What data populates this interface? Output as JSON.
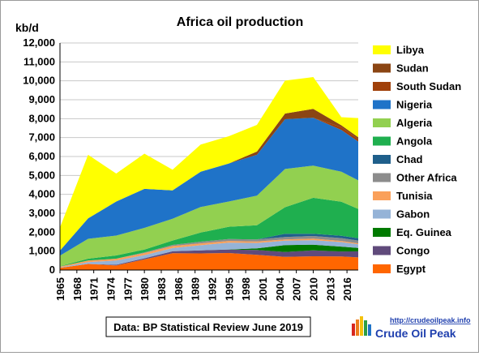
{
  "chart_data": {
    "type": "area",
    "stacked": true,
    "title": "Africa oil production",
    "ylabel": "kb/d",
    "xlabel": "",
    "xlim": [
      1965,
      2018
    ],
    "ylim": [
      0,
      12000
    ],
    "yticks": [
      0,
      1000,
      2000,
      3000,
      4000,
      5000,
      6000,
      7000,
      8000,
      9000,
      10000,
      11000,
      12000
    ],
    "ytick_labels": [
      "0",
      "1,000",
      "2,000",
      "3,000",
      "4,000",
      "5,000",
      "6,000",
      "7,000",
      "8,000",
      "9,000",
      "10,000",
      "11,000",
      "12,000"
    ],
    "xticks": [
      1965,
      1968,
      1971,
      1974,
      1977,
      1980,
      1983,
      1986,
      1989,
      1992,
      1995,
      1998,
      2001,
      2004,
      2007,
      2010,
      2013,
      2016
    ],
    "grid": true,
    "legend_position": "right",
    "source_note": "Data: BP Statistical Review June 2019",
    "x": [
      1965,
      1970,
      1975,
      1980,
      1985,
      1990,
      1995,
      2000,
      2005,
      2010,
      2015,
      2018
    ],
    "series": [
      {
        "name": "Egypt",
        "color": "#FF6600",
        "values": [
          120,
          320,
          240,
          560,
          890,
          880,
          900,
          800,
          700,
          730,
          720,
          670
        ]
      },
      {
        "name": "Congo",
        "color": "#604A7B",
        "values": [
          0,
          0,
          40,
          60,
          100,
          160,
          180,
          260,
          250,
          310,
          260,
          320
        ]
      },
      {
        "name": "Eq. Guinea",
        "color": "#007A00",
        "values": [
          0,
          0,
          0,
          0,
          0,
          0,
          10,
          90,
          370,
          300,
          260,
          180
        ]
      },
      {
        "name": "Gabon",
        "color": "#95B3D7",
        "values": [
          20,
          100,
          220,
          170,
          170,
          270,
          360,
          280,
          230,
          240,
          240,
          190
        ]
      },
      {
        "name": "Tunisia",
        "color": "#FAA05A",
        "values": [
          50,
          80,
          100,
          110,
          110,
          100,
          90,
          80,
          70,
          80,
          60,
          50
        ]
      },
      {
        "name": "Other Africa",
        "color": "#8C8C8C",
        "values": [
          0,
          0,
          0,
          30,
          60,
          90,
          100,
          110,
          130,
          140,
          150,
          150
        ]
      },
      {
        "name": "Chad",
        "color": "#1F5F8B",
        "values": [
          0,
          0,
          0,
          0,
          0,
          0,
          0,
          0,
          170,
          120,
          120,
          120
        ]
      },
      {
        "name": "Angola",
        "color": "#1FAF4F",
        "values": [
          10,
          100,
          170,
          150,
          230,
          480,
          650,
          750,
          1400,
          1900,
          1800,
          1550
        ]
      },
      {
        "name": "Algeria",
        "color": "#92D050",
        "values": [
          560,
          1050,
          1050,
          1150,
          1150,
          1350,
          1330,
          1560,
          2020,
          1700,
          1590,
          1510
        ]
      },
      {
        "name": "Nigeria",
        "color": "#1F73C8",
        "values": [
          270,
          1080,
          1800,
          2060,
          1500,
          1870,
          2010,
          2160,
          2630,
          2530,
          2200,
          2050
        ]
      },
      {
        "name": "South Sudan",
        "color": "#A0400A",
        "values": [
          0,
          0,
          0,
          0,
          0,
          0,
          0,
          0,
          0,
          0,
          150,
          130
        ]
      },
      {
        "name": "Sudan",
        "color": "#8B4513",
        "values": [
          0,
          0,
          0,
          0,
          0,
          0,
          0,
          170,
          300,
          470,
          100,
          100
        ]
      },
      {
        "name": "Libya",
        "color": "#FFFF00",
        "values": [
          1220,
          3360,
          1480,
          1860,
          1090,
          1430,
          1440,
          1410,
          1740,
          1680,
          430,
          1010
        ]
      }
    ]
  }
}
